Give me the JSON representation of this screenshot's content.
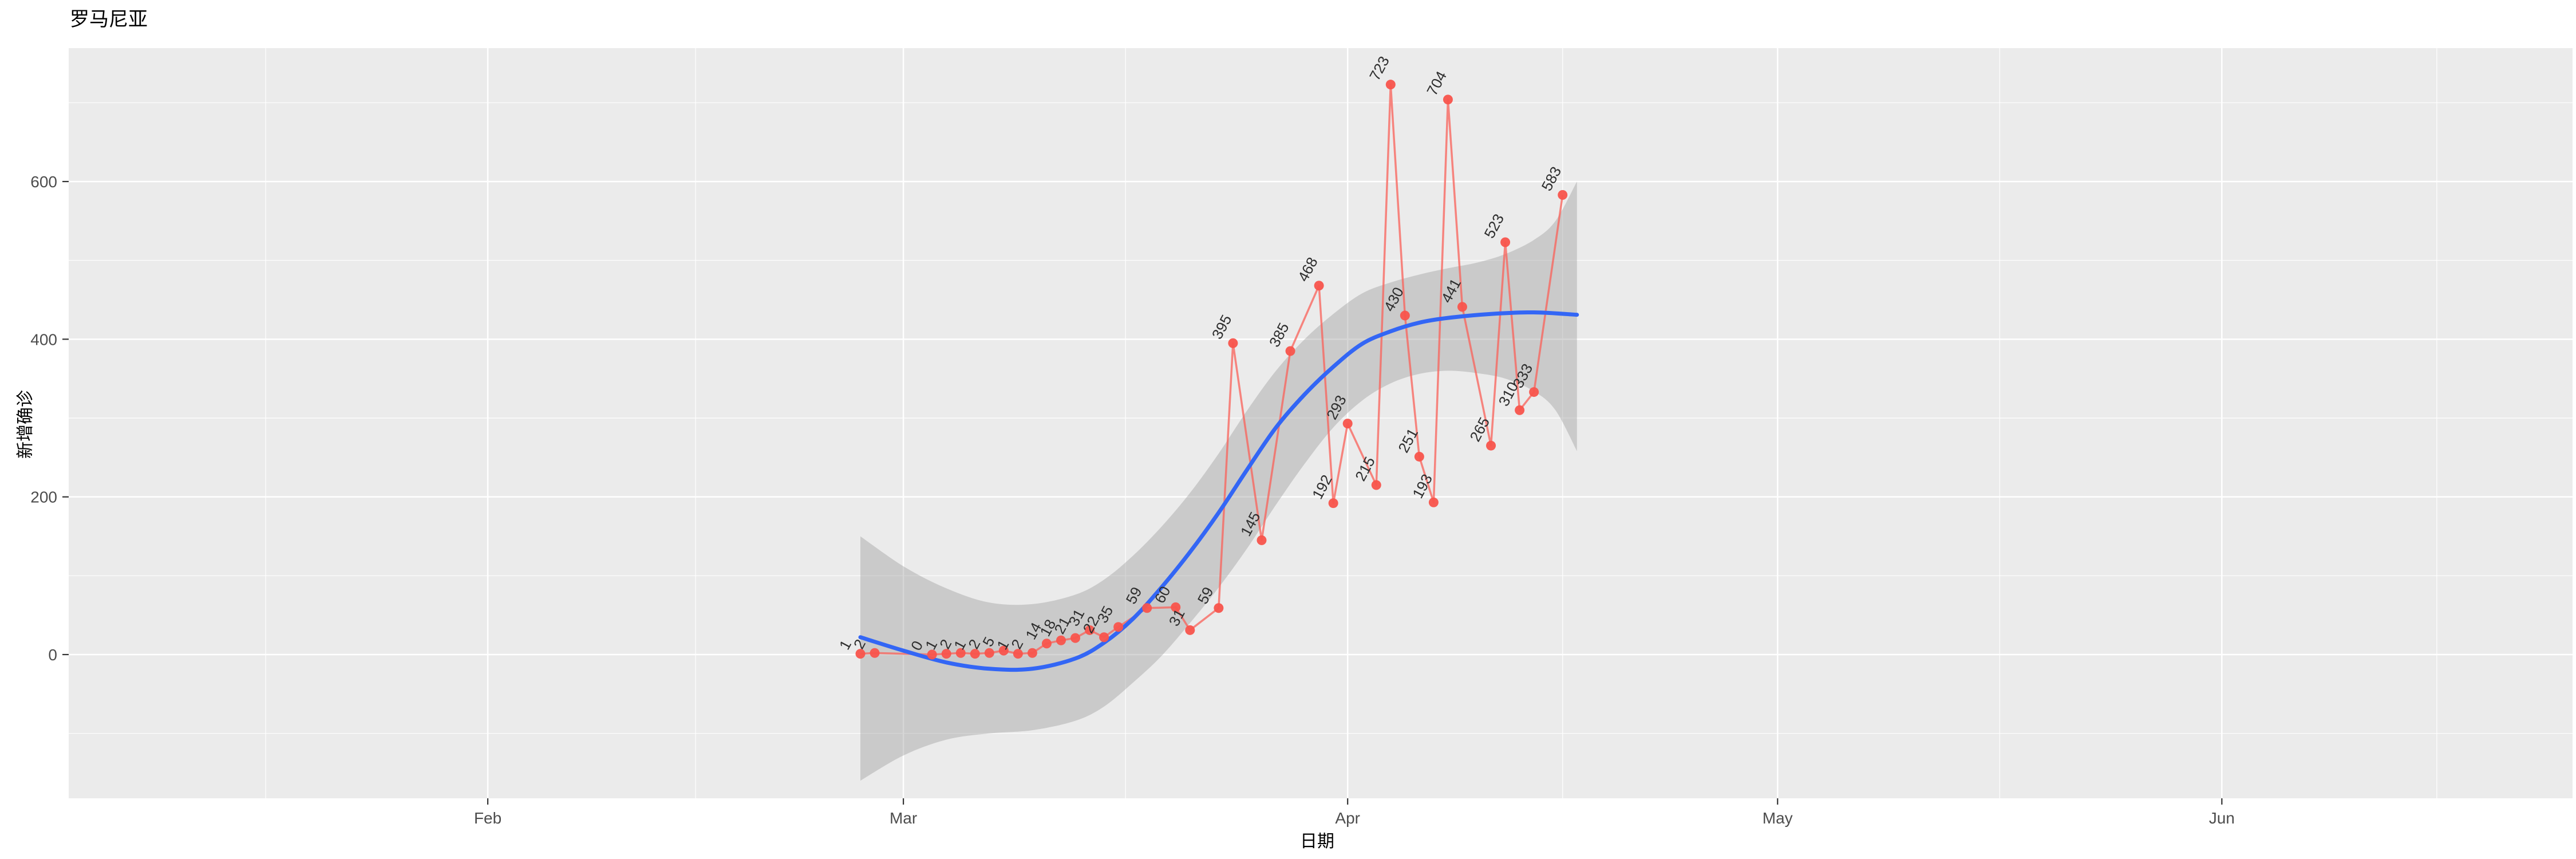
{
  "title": "罗马尼亚",
  "axes": {
    "x_title": "日期",
    "y_title": "新增确诊"
  },
  "chart_data": {
    "type": "line",
    "title": "罗马尼亚",
    "xlabel": "日期",
    "ylabel": "新增确诊",
    "legend": "none",
    "grid": "on",
    "x_tick_labels": [
      "Feb",
      "Mar",
      "Apr",
      "May",
      "Jun"
    ],
    "y_tick_values": [
      0,
      200,
      400,
      600
    ],
    "ylim": [
      -183,
      769
    ],
    "x_range_dates": [
      "2020-01-03",
      "2020-06-25"
    ],
    "base_date": "2020-02-27",
    "points": [
      {
        "date": "2020-02-27",
        "value": 1
      },
      {
        "date": "2020-02-28",
        "value": 2
      },
      {
        "date": "2020-03-03",
        "value": 0
      },
      {
        "date": "2020-03-04",
        "value": 1
      },
      {
        "date": "2020-03-05",
        "value": 2
      },
      {
        "date": "2020-03-06",
        "value": 1
      },
      {
        "date": "2020-03-07",
        "value": 2
      },
      {
        "date": "2020-03-08",
        "value": 5
      },
      {
        "date": "2020-03-09",
        "value": 1
      },
      {
        "date": "2020-03-10",
        "value": 2
      },
      {
        "date": "2020-03-11",
        "value": 14
      },
      {
        "date": "2020-03-12",
        "value": 18
      },
      {
        "date": "2020-03-13",
        "value": 21
      },
      {
        "date": "2020-03-14",
        "value": 31
      },
      {
        "date": "2020-03-15",
        "value": 22
      },
      {
        "date": "2020-03-16",
        "value": 35
      },
      {
        "date": "2020-03-18",
        "value": 59
      },
      {
        "date": "2020-03-20",
        "value": 60
      },
      {
        "date": "2020-03-21",
        "value": 31
      },
      {
        "date": "2020-03-23",
        "value": 59
      },
      {
        "date": "2020-03-24",
        "value": 395
      },
      {
        "date": "2020-03-26",
        "value": 145
      },
      {
        "date": "2020-03-28",
        "value": 385
      },
      {
        "date": "2020-03-30",
        "value": 468
      },
      {
        "date": "2020-03-31",
        "value": 192
      },
      {
        "date": "2020-04-01",
        "value": 293
      },
      {
        "date": "2020-04-03",
        "value": 215
      },
      {
        "date": "2020-04-04",
        "value": 723
      },
      {
        "date": "2020-04-05",
        "value": 430
      },
      {
        "date": "2020-04-06",
        "value": 251
      },
      {
        "date": "2020-04-07",
        "value": 193
      },
      {
        "date": "2020-04-08",
        "value": 704
      },
      {
        "date": "2020-04-09",
        "value": 441
      },
      {
        "date": "2020-04-11",
        "value": 265
      },
      {
        "date": "2020-04-12",
        "value": 523
      },
      {
        "date": "2020-04-13",
        "value": 310
      },
      {
        "date": "2020-04-14",
        "value": 333
      },
      {
        "date": "2020-04-16",
        "value": 583
      }
    ],
    "loess_line": [
      [
        0,
        22
      ],
      [
        3,
        5
      ],
      [
        6,
        -10
      ],
      [
        9,
        -18
      ],
      [
        12,
        -18
      ],
      [
        15,
        -5
      ],
      [
        17,
        15
      ],
      [
        19,
        45
      ],
      [
        21,
        85
      ],
      [
        23,
        130
      ],
      [
        25,
        180
      ],
      [
        27,
        235
      ],
      [
        29,
        288
      ],
      [
        31,
        330
      ],
      [
        33,
        365
      ],
      [
        35,
        394
      ],
      [
        37,
        410
      ],
      [
        39,
        421
      ],
      [
        41,
        427
      ],
      [
        44,
        432
      ],
      [
        47,
        434
      ],
      [
        50,
        431
      ]
    ],
    "ribbon_upper": [
      [
        0,
        150
      ],
      [
        3,
        112
      ],
      [
        6,
        84
      ],
      [
        9,
        66
      ],
      [
        12,
        64
      ],
      [
        15,
        76
      ],
      [
        17,
        95
      ],
      [
        19,
        125
      ],
      [
        21,
        162
      ],
      [
        23,
        205
      ],
      [
        25,
        255
      ],
      [
        27,
        310
      ],
      [
        29,
        360
      ],
      [
        31,
        400
      ],
      [
        33,
        432
      ],
      [
        35,
        458
      ],
      [
        37,
        472
      ],
      [
        39,
        482
      ],
      [
        41,
        490
      ],
      [
        43,
        497
      ],
      [
        45,
        508
      ],
      [
        47,
        526
      ],
      [
        48.5,
        550
      ],
      [
        50,
        600
      ]
    ],
    "ribbon_lower": [
      [
        0,
        -160
      ],
      [
        3,
        -128
      ],
      [
        6,
        -108
      ],
      [
        9,
        -100
      ],
      [
        12,
        -96
      ],
      [
        15,
        -84
      ],
      [
        17,
        -66
      ],
      [
        19,
        -36
      ],
      [
        21,
        -2
      ],
      [
        23,
        40
      ],
      [
        25,
        85
      ],
      [
        27,
        135
      ],
      [
        29,
        190
      ],
      [
        31,
        242
      ],
      [
        33,
        288
      ],
      [
        35,
        322
      ],
      [
        37,
        344
      ],
      [
        39,
        356
      ],
      [
        41,
        360
      ],
      [
        43,
        357
      ],
      [
        45,
        350
      ],
      [
        47,
        334
      ],
      [
        48.5,
        310
      ],
      [
        50,
        258
      ]
    ],
    "x_major_ticks": [
      {
        "label": "Feb",
        "t": -26
      },
      {
        "label": "Mar",
        "t": 3
      },
      {
        "label": "Apr",
        "t": 34
      },
      {
        "label": "May",
        "t": 64
      },
      {
        "label": "Jun",
        "t": 95
      }
    ],
    "x_minor_t": [
      -41.5,
      -11.5,
      18.5,
      49,
      79.5,
      110
    ],
    "y_minor_values": [
      -100,
      100,
      300,
      500,
      700
    ],
    "colors": {
      "line": "#F8655E",
      "point": "#F8544C",
      "smooth_line": "#3366F5",
      "ribbon": "rgba(153,153,153,0.40)",
      "panel_bg": "#EBEBEB",
      "grid": "#FFFFFF",
      "tick_text": "#4D4D4D",
      "axis_text": "#000000",
      "point_label": "#2E2E2E",
      "tick_mark": "#333333"
    }
  }
}
